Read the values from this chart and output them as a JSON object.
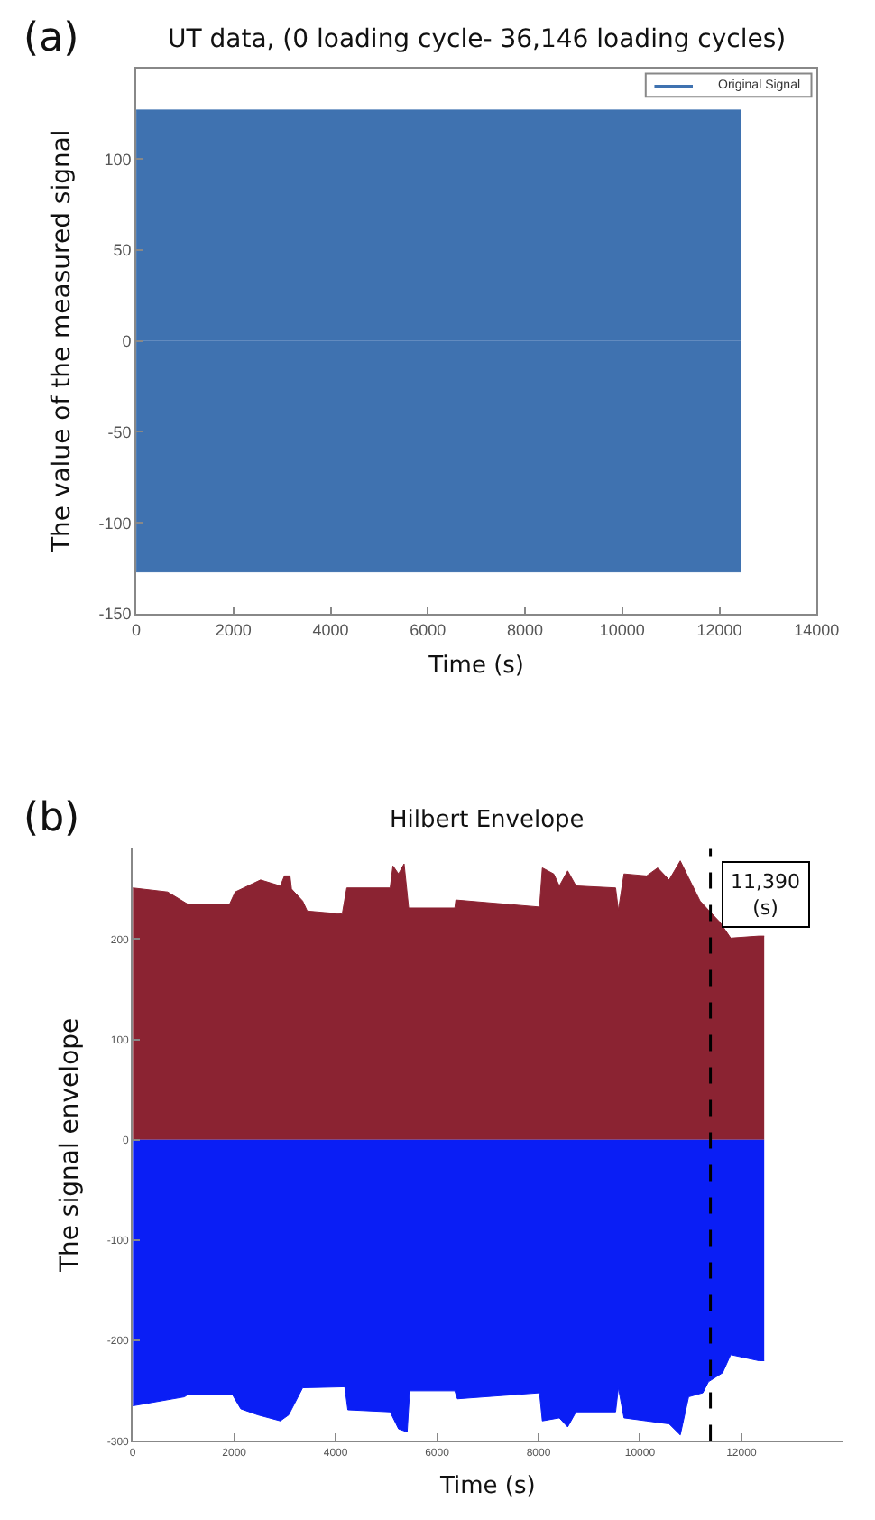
{
  "chart_data": [
    {
      "type": "area",
      "title": "UT data, (0 loading cycle- 36,146 loading cycles)",
      "xlabel": "Time (s)",
      "ylabel": "The value of the measured signal",
      "annotations": [
        "(a)"
      ],
      "series": [
        {
          "name": "Original Signal",
          "color": "#3f72b0",
          "x": [
            0,
            12450
          ],
          "values": [
            127,
            127
          ]
        },
        {
          "color": "#3f72b0",
          "x": [
            0,
            12450
          ],
          "values": [
            -127,
            -127
          ]
        }
      ],
      "xlim": [
        0,
        14000
      ],
      "xticks": [
        0,
        2000,
        4000,
        6000,
        8000,
        10000,
        12000,
        14000
      ],
      "ylim": [
        -150,
        150
      ],
      "yticks": [
        -150,
        -100,
        -50,
        0,
        50,
        100
      ],
      "legend": "top right"
    },
    {
      "type": "area",
      "title": "Hilbert Envelope",
      "xlabel": "Time (s)",
      "ylabel": "The signal envelope",
      "annotations": [
        "(b)"
      ],
      "series": [
        {
          "color": "#8b2332",
          "x": [
            0,
            687,
            1078,
            1911,
            2020,
            2520,
            2910,
            2990,
            3100,
            3130,
            3350,
            3440,
            4130,
            4220,
            5075,
            5130,
            5240,
            5350,
            5440,
            6350,
            6370,
            8020,
            8075,
            8300,
            8410,
            8575,
            8740,
            9520,
            9575,
            9685,
            10130,
            10350,
            10575,
            10795,
            10960,
            11185,
            11350,
            11575,
            11790,
            12345,
            12450
          ],
          "values": [
            251,
            247,
            235,
            235,
            247,
            259,
            253,
            263,
            263,
            250,
            238,
            228,
            225,
            251,
            251,
            273,
            265,
            275,
            231,
            231,
            239,
            232,
            271,
            265,
            253,
            268,
            253,
            251,
            229,
            265,
            263,
            271,
            259,
            278,
            261,
            238,
            229,
            217,
            201,
            203,
            203
          ]
        },
        {
          "color": "#0a1ef5",
          "x": [
            0,
            1020,
            1078,
            1967,
            2130,
            2465,
            2910,
            3075,
            3350,
            4180,
            4240,
            5075,
            5240,
            5410,
            5460,
            6350,
            6400,
            8020,
            8075,
            8410,
            8575,
            8740,
            9520,
            9575,
            9685,
            10130,
            10575,
            10795,
            10960,
            11240,
            11350,
            11630,
            11790,
            12345,
            12450
          ],
          "values": [
            -265,
            -256,
            -254,
            -254,
            -268,
            -274,
            -280,
            -274,
            -247,
            -246,
            -269,
            -271,
            -288,
            -291,
            -250,
            -250,
            -258,
            -252,
            -280,
            -277,
            -286,
            -271,
            -271,
            -247,
            -277,
            -280,
            -283,
            -294,
            -256,
            -252,
            -241,
            -232,
            -214,
            -220,
            -220
          ]
        }
      ],
      "ref_lines": [
        {
          "axis": "x",
          "value": 11390,
          "label": "11,390\n(s)",
          "color": "#000000",
          "line_style": "dashed"
        }
      ],
      "xlim": [
        0,
        14000
      ],
      "xticks": [
        0,
        2000,
        4000,
        6000,
        8000,
        10000,
        12000
      ],
      "ylim": [
        -300,
        290
      ],
      "yticks": [
        -300,
        -200,
        -100,
        0,
        100,
        200
      ]
    }
  ]
}
